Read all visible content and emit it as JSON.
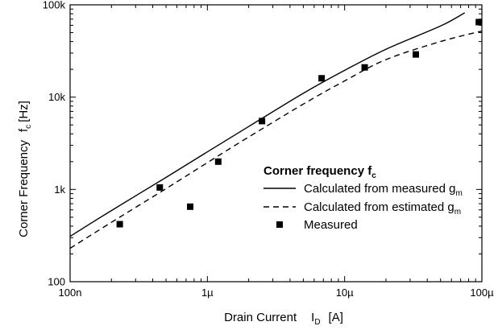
{
  "chart_data": {
    "type": "line",
    "xscale": "log",
    "yscale": "log",
    "xlim": [
      1e-07,
      0.0001
    ],
    "ylim": [
      100,
      100000
    ],
    "x_ticks": [
      "100n",
      "1µ",
      "10µ",
      "100µ"
    ],
    "y_ticks": [
      "100",
      "1k",
      "10k",
      "100k"
    ],
    "xlabel": {
      "main": "Drain Current",
      "symbol": "I",
      "sub": "D",
      "unit": "[A]"
    },
    "ylabel": {
      "main": "Corner Frequency",
      "symbol": "f",
      "sub": "c",
      "unit": "[Hz]"
    },
    "legend": {
      "title_main": "Corner frequency f",
      "title_sub": "c",
      "position": "lower-right"
    },
    "series": [
      {
        "name_main": "Calculated from measured g",
        "name_sub": "m",
        "style": "solid",
        "x": [
          1e-07,
          2e-07,
          5e-07,
          1e-06,
          2e-06,
          5e-06,
          1e-05,
          2e-05,
          5e-05,
          7.5e-05
        ],
        "y": [
          310,
          590,
          1350,
          2550,
          4800,
          11000,
          19500,
          33000,
          59000,
          82000
        ]
      },
      {
        "name_main": "Calculated from estimated g",
        "name_sub": "m",
        "style": "dashed",
        "x": [
          1e-07,
          2e-07,
          5e-07,
          1e-06,
          2e-06,
          5e-06,
          1e-05,
          2e-05,
          5e-05,
          0.0001
        ],
        "y": [
          230,
          440,
          1020,
          1950,
          3700,
          8400,
          15000,
          25500,
          40000,
          52000
        ]
      },
      {
        "name": "Measured",
        "style": "marker",
        "x": [
          2.3e-07,
          4.5e-07,
          7.5e-07,
          1.2e-06,
          2.5e-06,
          6.8e-06,
          1.4e-05,
          3.3e-05,
          9.5e-05
        ],
        "y": [
          420,
          1050,
          650,
          2000,
          5500,
          16000,
          21000,
          29000,
          65000
        ]
      }
    ]
  }
}
